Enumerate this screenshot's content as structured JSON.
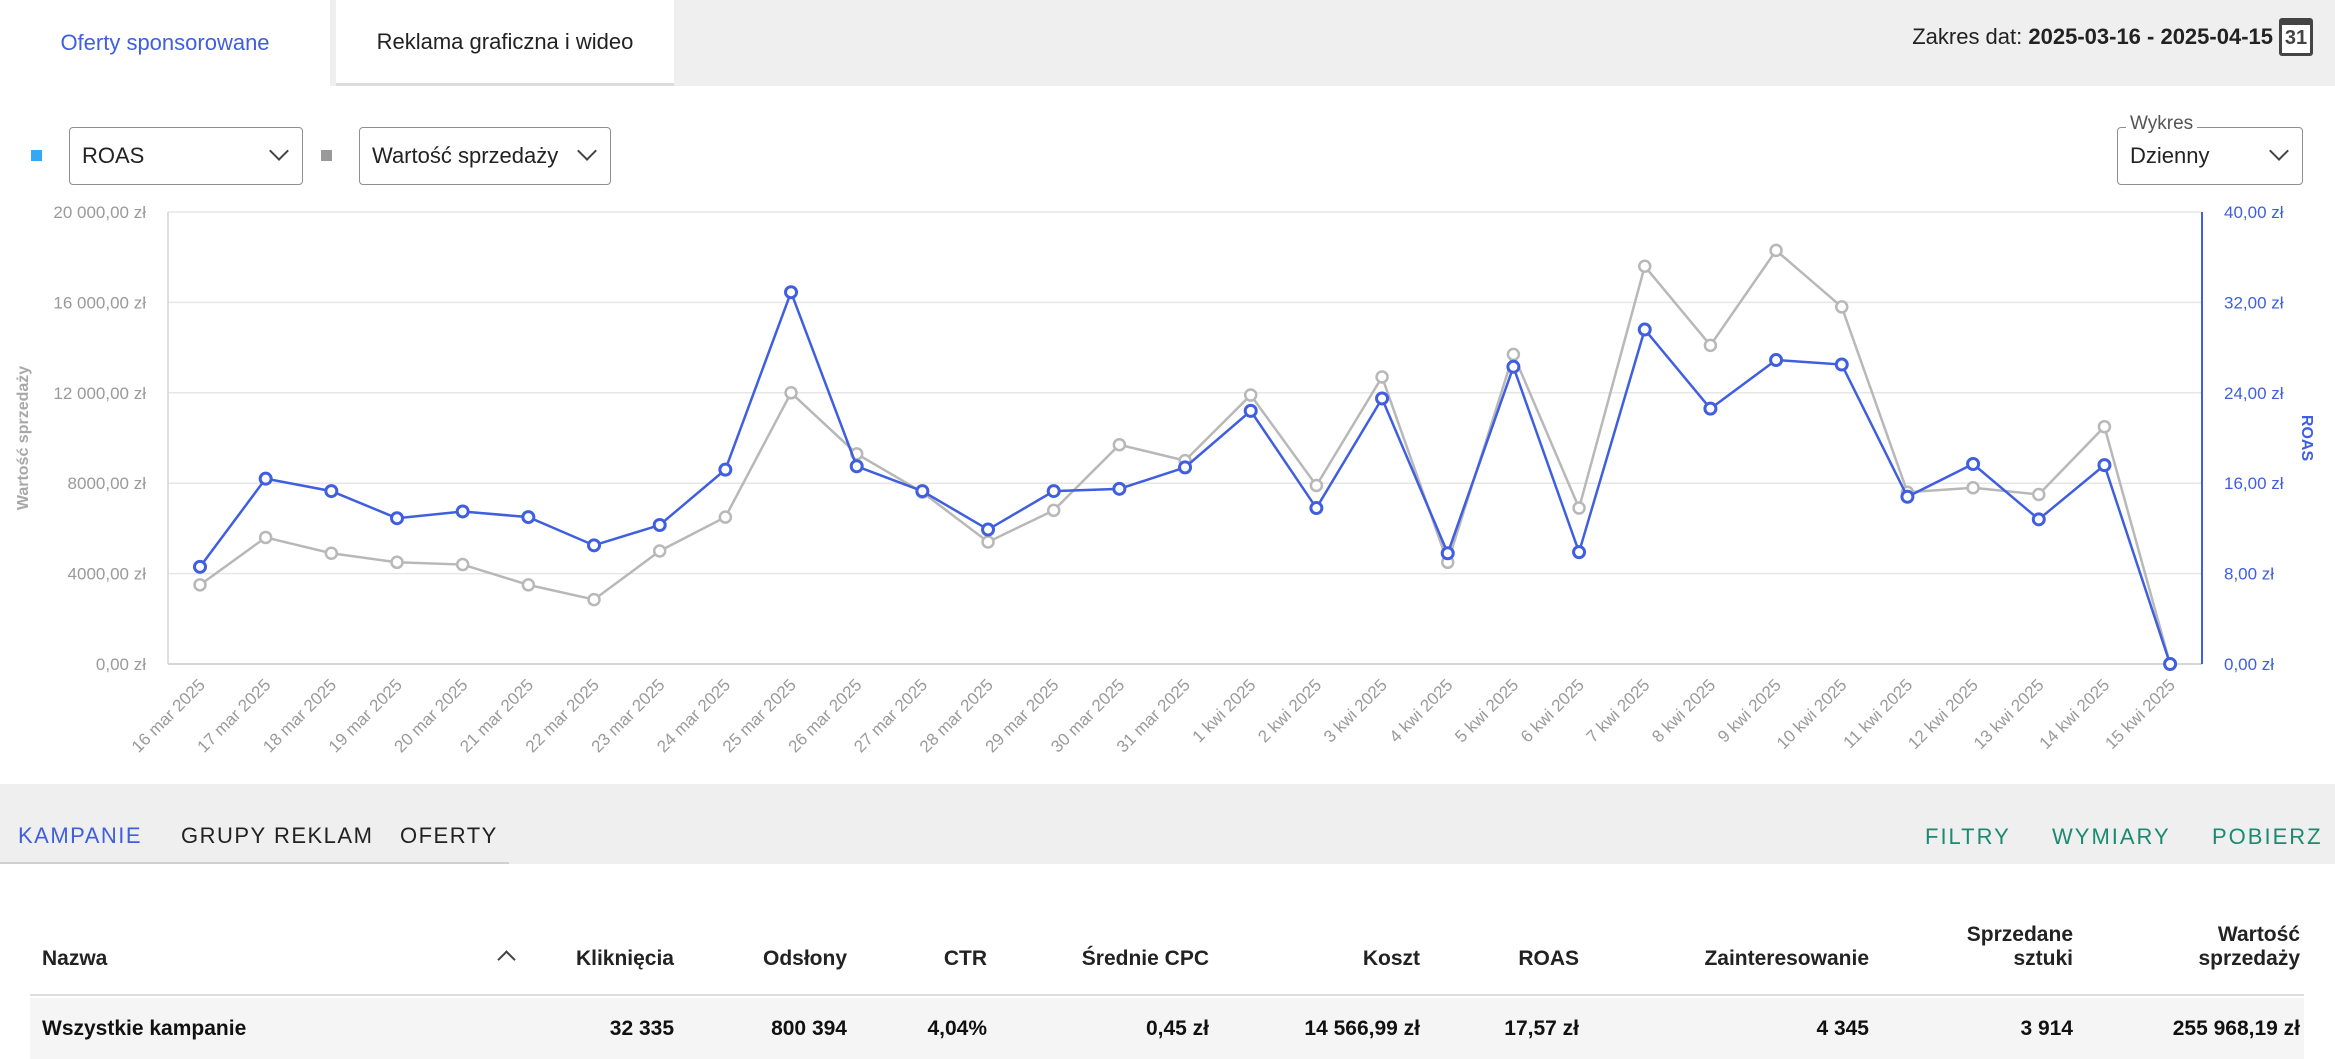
{
  "tabs": {
    "sponsored": "Oferty sponsorowane",
    "display": "Reklama graficzna i wideo"
  },
  "date_range": {
    "label": "Zakres dat:",
    "value": "2025-03-16 - 2025-04-15",
    "calendar_day": "31"
  },
  "selectors": {
    "metric_left": "ROAS",
    "metric_right": "Wartość sprzedaży",
    "chart_label": "Wykres",
    "chart_value": "Dzienny"
  },
  "colors": {
    "roas": "#3f5ee0",
    "sales": "#b8b8b8",
    "accent_link": "#1a8a72",
    "legend_roas": "#35a8f3"
  },
  "chart_data": {
    "type": "line",
    "x": [
      "16 mar 2025",
      "17 mar 2025",
      "18 mar 2025",
      "19 mar 2025",
      "20 mar 2025",
      "21 mar 2025",
      "22 mar 2025",
      "23 mar 2025",
      "24 mar 2025",
      "25 mar 2025",
      "26 mar 2025",
      "27 mar 2025",
      "28 mar 2025",
      "29 mar 2025",
      "30 mar 2025",
      "31 mar 2025",
      "1 kwi 2025",
      "2 kwi 2025",
      "3 kwi 2025",
      "4 kwi 2025",
      "5 kwi 2025",
      "6 kwi 2025",
      "7 kwi 2025",
      "8 kwi 2025",
      "9 kwi 2025",
      "10 kwi 2025",
      "11 kwi 2025",
      "12 kwi 2025",
      "13 kwi 2025",
      "14 kwi 2025",
      "15 kwi 2025"
    ],
    "left_axis": {
      "label": "Wartość sprzedaży",
      "ticks": [
        "0,00 zł",
        "4000,00 zł",
        "8000,00 zł",
        "12 000,00 zł",
        "16 000,00 zł",
        "20 000,00 zł"
      ],
      "range": [
        0,
        20000
      ]
    },
    "right_axis": {
      "label": "ROAS",
      "ticks": [
        "0,00 zł",
        "8,00 zł",
        "16,00 zł",
        "24,00 zł",
        "32,00 zł",
        "40,00 zł"
      ],
      "range": [
        0,
        40
      ]
    },
    "series": [
      {
        "name": "Wartość sprzedaży",
        "axis": "left",
        "values": [
          3500,
          5600,
          4900,
          4500,
          4400,
          3500,
          2850,
          5000,
          6500,
          12000,
          9300,
          7600,
          5400,
          6800,
          9700,
          9000,
          11900,
          7900,
          12700,
          4500,
          13700,
          6900,
          17600,
          14100,
          18300,
          15800,
          7600,
          7800,
          7500,
          10500,
          0
        ]
      },
      {
        "name": "ROAS",
        "axis": "right",
        "values": [
          8.6,
          16.4,
          15.3,
          12.9,
          13.5,
          13.0,
          10.5,
          12.3,
          17.2,
          32.9,
          17.5,
          15.3,
          11.9,
          15.3,
          15.5,
          17.4,
          22.4,
          13.8,
          23.5,
          9.8,
          26.3,
          9.9,
          29.6,
          22.6,
          26.9,
          26.5,
          14.8,
          17.7,
          12.8,
          17.6,
          0
        ]
      }
    ],
    "grid": true
  },
  "subnav": {
    "tabs": [
      "KAMPANIE",
      "GRUPY REKLAM",
      "OFERTY"
    ],
    "actions": [
      "FILTRY",
      "WYMIARY",
      "POBIERZ"
    ]
  },
  "table": {
    "headers": {
      "name": "Nazwa",
      "clicks": "Kliknięcia",
      "impressions": "Odsłony",
      "ctr": "CTR",
      "avg_cpc": "Średnie CPC",
      "cost": "Koszt",
      "roas": "ROAS",
      "interest": "Zainteresowanie",
      "units_1": "Sprzedane",
      "units_2": "sztuki",
      "value_1": "Wartość",
      "value_2": "sprzedaży"
    },
    "total_row": {
      "name": "Wszystkie kampanie",
      "clicks": "32 335",
      "impressions": "800 394",
      "ctr": "4,04%",
      "avg_cpc": "0,45 zł",
      "cost": "14 566,99 zł",
      "roas": "17,57 zł",
      "interest": "4 345",
      "units": "3 914",
      "value": "255 968,19 zł"
    }
  }
}
